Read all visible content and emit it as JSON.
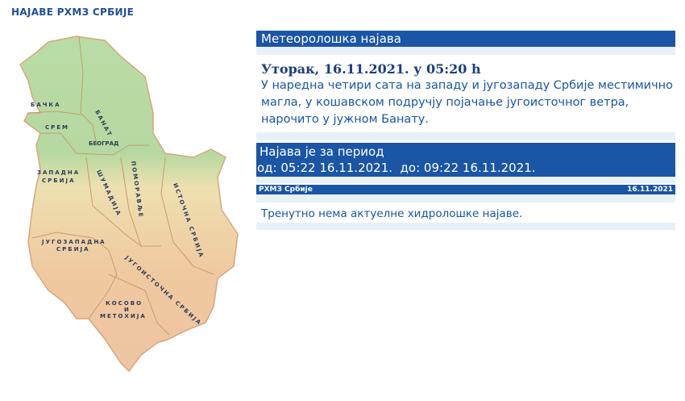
{
  "header": {
    "title": "НАЈАВЕ РХМЗ СРБИЈЕ"
  },
  "map": {
    "regions": [
      "БАЧКА",
      "БАНАТ",
      "СРЕМ",
      "БЕОГРАД",
      "ЗАПАДНА",
      "СРБИЈА",
      "ШУМАДИЈА",
      "ПОМОРАВЉЕ",
      "ИСТОЧНА СРБИЈА",
      "ЈУГОЗАПАДНА",
      "СРБИЈА",
      "ЈУГОИСТОЧНА СРБИЈА",
      "КОСОВО",
      "И",
      "МЕТОХИЈА"
    ]
  },
  "meteo": {
    "heading": "Метеоролошка најава",
    "date": "Уторак, 16.11.2021. у 05:20 h",
    "text": "У наредна четири сата на западу и југозападу Србије местимично магла, у кошавском подручју појачање југоисточног ветра, нарочито у јужном Банату.",
    "period_label": "Најава је за период",
    "period_range": "од: 05:22 16.11.2021.  до: 09:22 16.11.2021."
  },
  "footer": {
    "source": "РХМЗ Србије",
    "date": "16.11.2021"
  },
  "hydro": {
    "text": "Тренутно нема актуелне хидролошке најаве."
  },
  "colors": {
    "accent": "#1a55a6",
    "band": "#e8f1f8"
  }
}
